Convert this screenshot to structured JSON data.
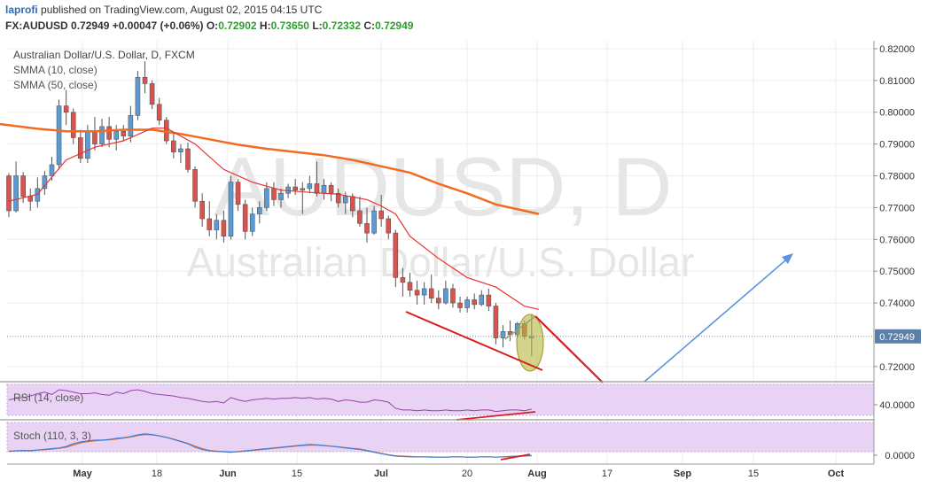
{
  "header": {
    "author": "laprofi",
    "published_text": "published on TradingView.com, August 02, 2015 04:15 UTC",
    "symbol": "FX:AUDUSD",
    "last": "0.72949",
    "change": "+0.00047 (+0.06%)",
    "o_label": "O:",
    "o": "0.72902",
    "h_label": "H:",
    "h": "0.73650",
    "l_label": "L:",
    "l": "0.72332",
    "c_label": "C:",
    "c": "0.72949"
  },
  "legend": {
    "title": "Australian Dollar/U.S. Dollar, D, FXCM",
    "smma10": "SMMA (10, close)",
    "smma50": "SMMA (50, close)",
    "rsi": "RSI (14, close)",
    "stoch": "Stoch (110, 3, 3)"
  },
  "watermark": {
    "symbol": "AUDUSD, D",
    "name": "Australian Dollar/U.S. Dollar"
  },
  "colors": {
    "up": "#5b9bd5",
    "down": "#d9534f",
    "smma10": "#e8322e",
    "smma50": "#f26b21",
    "rsi": "#9b3fa8",
    "stoch_k": "#3b7fd9",
    "stoch_d": "#f26b21",
    "band": "#e8d3f5",
    "trend_red": "#d42020",
    "arrow_blue": "#5b95e0",
    "ellipse": "#b5b540",
    "price_tag": "#5b7fa6"
  },
  "chart_data": {
    "type": "candlestick",
    "x_axis": {
      "ticks": [
        "May",
        "18",
        "Jun",
        "15",
        "Jul",
        "20",
        "Aug",
        "17",
        "Sep",
        "15",
        "Oct"
      ]
    },
    "y_axis": {
      "ylim": [
        0.7155,
        0.8225
      ],
      "ticks": [
        "0.82000",
        "0.81000",
        "0.80000",
        "0.79000",
        "0.78000",
        "0.77000",
        "0.76000",
        "0.75000",
        "0.74000",
        "0.72000"
      ],
      "last_price": "0.72949"
    },
    "candles": [
      {
        "o": 0.78,
        "h": 0.7808,
        "l": 0.767,
        "c": 0.769
      },
      {
        "o": 0.769,
        "h": 0.7845,
        "l": 0.7685,
        "c": 0.78
      },
      {
        "o": 0.78,
        "h": 0.7812,
        "l": 0.7715,
        "c": 0.7735
      },
      {
        "o": 0.7735,
        "h": 0.776,
        "l": 0.769,
        "c": 0.772
      },
      {
        "o": 0.772,
        "h": 0.7795,
        "l": 0.77,
        "c": 0.776
      },
      {
        "o": 0.776,
        "h": 0.7815,
        "l": 0.774,
        "c": 0.78
      },
      {
        "o": 0.78,
        "h": 0.786,
        "l": 0.7785,
        "c": 0.7835
      },
      {
        "o": 0.7835,
        "h": 0.804,
        "l": 0.782,
        "c": 0.802
      },
      {
        "o": 0.802,
        "h": 0.807,
        "l": 0.796,
        "c": 0.8
      },
      {
        "o": 0.8,
        "h": 0.8012,
        "l": 0.79,
        "c": 0.792
      },
      {
        "o": 0.792,
        "h": 0.7945,
        "l": 0.784,
        "c": 0.7855
      },
      {
        "o": 0.7855,
        "h": 0.796,
        "l": 0.784,
        "c": 0.794
      },
      {
        "o": 0.794,
        "h": 0.7985,
        "l": 0.788,
        "c": 0.79
      },
      {
        "o": 0.79,
        "h": 0.798,
        "l": 0.789,
        "c": 0.7955
      },
      {
        "o": 0.7955,
        "h": 0.7985,
        "l": 0.789,
        "c": 0.7915
      },
      {
        "o": 0.7915,
        "h": 0.796,
        "l": 0.788,
        "c": 0.794
      },
      {
        "o": 0.794,
        "h": 0.796,
        "l": 0.791,
        "c": 0.7925
      },
      {
        "o": 0.7925,
        "h": 0.802,
        "l": 0.7905,
        "c": 0.799
      },
      {
        "o": 0.799,
        "h": 0.813,
        "l": 0.7975,
        "c": 0.811
      },
      {
        "o": 0.811,
        "h": 0.816,
        "l": 0.806,
        "c": 0.809
      },
      {
        "o": 0.809,
        "h": 0.81,
        "l": 0.801,
        "c": 0.8025
      },
      {
        "o": 0.8025,
        "h": 0.8045,
        "l": 0.796,
        "c": 0.7975
      },
      {
        "o": 0.7975,
        "h": 0.7985,
        "l": 0.79,
        "c": 0.791
      },
      {
        "o": 0.791,
        "h": 0.7935,
        "l": 0.7855,
        "c": 0.7875
      },
      {
        "o": 0.7875,
        "h": 0.79,
        "l": 0.784,
        "c": 0.7885
      },
      {
        "o": 0.7885,
        "h": 0.7905,
        "l": 0.781,
        "c": 0.782
      },
      {
        "o": 0.782,
        "h": 0.783,
        "l": 0.77,
        "c": 0.772
      },
      {
        "o": 0.772,
        "h": 0.7745,
        "l": 0.764,
        "c": 0.7665
      },
      {
        "o": 0.7665,
        "h": 0.772,
        "l": 0.761,
        "c": 0.763
      },
      {
        "o": 0.763,
        "h": 0.768,
        "l": 0.76,
        "c": 0.766
      },
      {
        "o": 0.766,
        "h": 0.769,
        "l": 0.759,
        "c": 0.761
      },
      {
        "o": 0.761,
        "h": 0.78,
        "l": 0.76,
        "c": 0.778
      },
      {
        "o": 0.778,
        "h": 0.779,
        "l": 0.769,
        "c": 0.771
      },
      {
        "o": 0.771,
        "h": 0.7725,
        "l": 0.76,
        "c": 0.7625
      },
      {
        "o": 0.7625,
        "h": 0.77,
        "l": 0.761,
        "c": 0.768
      },
      {
        "o": 0.768,
        "h": 0.772,
        "l": 0.765,
        "c": 0.77
      },
      {
        "o": 0.77,
        "h": 0.778,
        "l": 0.769,
        "c": 0.776
      },
      {
        "o": 0.776,
        "h": 0.778,
        "l": 0.7705,
        "c": 0.7725
      },
      {
        "o": 0.7725,
        "h": 0.776,
        "l": 0.77,
        "c": 0.7745
      },
      {
        "o": 0.7745,
        "h": 0.7775,
        "l": 0.773,
        "c": 0.7765
      },
      {
        "o": 0.7765,
        "h": 0.779,
        "l": 0.774,
        "c": 0.7755
      },
      {
        "o": 0.7755,
        "h": 0.778,
        "l": 0.768,
        "c": 0.776
      },
      {
        "o": 0.776,
        "h": 0.78,
        "l": 0.7745,
        "c": 0.7775
      },
      {
        "o": 0.7775,
        "h": 0.7845,
        "l": 0.7735,
        "c": 0.7745
      },
      {
        "o": 0.7745,
        "h": 0.779,
        "l": 0.7725,
        "c": 0.777
      },
      {
        "o": 0.777,
        "h": 0.778,
        "l": 0.772,
        "c": 0.7745
      },
      {
        "o": 0.7745,
        "h": 0.776,
        "l": 0.77,
        "c": 0.7715
      },
      {
        "o": 0.7715,
        "h": 0.775,
        "l": 0.768,
        "c": 0.7735
      },
      {
        "o": 0.7735,
        "h": 0.7745,
        "l": 0.767,
        "c": 0.769
      },
      {
        "o": 0.769,
        "h": 0.7735,
        "l": 0.764,
        "c": 0.765
      },
      {
        "o": 0.765,
        "h": 0.77,
        "l": 0.759,
        "c": 0.762
      },
      {
        "o": 0.762,
        "h": 0.7705,
        "l": 0.7615,
        "c": 0.769
      },
      {
        "o": 0.769,
        "h": 0.774,
        "l": 0.764,
        "c": 0.7665
      },
      {
        "o": 0.7665,
        "h": 0.7675,
        "l": 0.76,
        "c": 0.762
      },
      {
        "o": 0.762,
        "h": 0.763,
        "l": 0.745,
        "c": 0.748
      },
      {
        "o": 0.748,
        "h": 0.751,
        "l": 0.742,
        "c": 0.7465
      },
      {
        "o": 0.7465,
        "h": 0.7495,
        "l": 0.742,
        "c": 0.744
      },
      {
        "o": 0.744,
        "h": 0.747,
        "l": 0.7395,
        "c": 0.7425
      },
      {
        "o": 0.7425,
        "h": 0.7465,
        "l": 0.7395,
        "c": 0.7445
      },
      {
        "o": 0.7445,
        "h": 0.749,
        "l": 0.74,
        "c": 0.7415
      },
      {
        "o": 0.7415,
        "h": 0.744,
        "l": 0.738,
        "c": 0.74
      },
      {
        "o": 0.74,
        "h": 0.747,
        "l": 0.7395,
        "c": 0.7445
      },
      {
        "o": 0.7445,
        "h": 0.746,
        "l": 0.7385,
        "c": 0.74
      },
      {
        "o": 0.74,
        "h": 0.742,
        "l": 0.737,
        "c": 0.7385
      },
      {
        "o": 0.7385,
        "h": 0.742,
        "l": 0.737,
        "c": 0.741
      },
      {
        "o": 0.741,
        "h": 0.743,
        "l": 0.738,
        "c": 0.7395
      },
      {
        "o": 0.7395,
        "h": 0.744,
        "l": 0.739,
        "c": 0.7425
      },
      {
        "o": 0.7425,
        "h": 0.7445,
        "l": 0.7375,
        "c": 0.739
      },
      {
        "o": 0.739,
        "h": 0.74,
        "l": 0.727,
        "c": 0.729
      },
      {
        "o": 0.729,
        "h": 0.733,
        "l": 0.726,
        "c": 0.731
      },
      {
        "o": 0.731,
        "h": 0.7345,
        "l": 0.728,
        "c": 0.73
      },
      {
        "o": 0.73,
        "h": 0.734,
        "l": 0.729,
        "c": 0.7335
      },
      {
        "o": 0.7335,
        "h": 0.7345,
        "l": 0.7285,
        "c": 0.7295
      },
      {
        "o": 0.729,
        "h": 0.7365,
        "l": 0.7233,
        "c": 0.7295
      }
    ],
    "smma10": [
      [
        0,
        0.772
      ],
      [
        4,
        0.7742
      ],
      [
        8,
        0.785
      ],
      [
        12,
        0.789
      ],
      [
        16,
        0.791
      ],
      [
        20,
        0.795
      ],
      [
        22,
        0.795
      ],
      [
        26,
        0.79
      ],
      [
        30,
        0.782
      ],
      [
        34,
        0.778
      ],
      [
        38,
        0.7755
      ],
      [
        42,
        0.7748
      ],
      [
        46,
        0.7742
      ],
      [
        50,
        0.7725
      ],
      [
        52,
        0.7705
      ],
      [
        54,
        0.768
      ],
      [
        56,
        0.761
      ],
      [
        60,
        0.754
      ],
      [
        64,
        0.748
      ],
      [
        68,
        0.745
      ],
      [
        72,
        0.739
      ],
      [
        74,
        0.738
      ]
    ],
    "smma50": [
      [
        -2,
        0.7965
      ],
      [
        4,
        0.7948
      ],
      [
        8,
        0.794
      ],
      [
        12,
        0.794
      ],
      [
        16,
        0.7945
      ],
      [
        20,
        0.7945
      ],
      [
        24,
        0.7932
      ],
      [
        28,
        0.7915
      ],
      [
        32,
        0.7898
      ],
      [
        36,
        0.7885
      ],
      [
        40,
        0.7875
      ],
      [
        44,
        0.7865
      ],
      [
        48,
        0.785
      ],
      [
        52,
        0.783
      ],
      [
        56,
        0.781
      ],
      [
        60,
        0.7775
      ],
      [
        64,
        0.7745
      ],
      [
        68,
        0.771
      ],
      [
        72,
        0.769
      ],
      [
        74,
        0.768
      ]
    ],
    "rsi": {
      "label": "RSI (14, close)",
      "tick": "40.0000",
      "values": [
        50,
        52,
        53,
        55,
        58,
        60,
        57,
        63,
        62,
        60,
        58,
        58,
        59,
        57,
        56,
        60,
        58,
        62,
        63,
        61,
        58,
        57,
        56,
        55,
        53,
        52,
        50,
        48,
        47,
        48,
        46,
        53,
        50,
        48,
        50,
        51,
        52,
        51,
        52,
        52,
        53,
        52,
        53,
        51,
        52,
        51,
        48,
        50,
        49,
        47,
        47,
        50,
        49,
        47,
        39,
        37,
        37,
        36,
        37,
        36,
        36,
        37,
        36,
        36,
        37,
        36,
        37,
        37,
        35,
        36,
        37,
        37,
        36,
        38
      ]
    },
    "stoch": {
      "label": "Stoch (110, 3, 3)",
      "tick": "0.0000",
      "k": [
        18,
        20,
        21,
        20,
        22,
        24,
        26,
        28,
        32,
        40,
        45,
        48,
        50,
        50,
        52,
        55,
        57,
        60,
        65,
        68,
        66,
        62,
        58,
        52,
        46,
        40,
        30,
        24,
        20,
        18,
        17,
        16,
        18,
        20,
        22,
        24,
        26,
        28,
        30,
        32,
        34,
        36,
        38,
        37,
        35,
        33,
        31,
        28,
        26,
        24,
        20,
        16,
        12,
        8,
        5,
        4,
        3,
        3,
        3,
        2,
        2,
        2,
        3,
        3,
        2,
        2,
        3,
        3,
        2,
        3,
        4,
        5,
        6,
        7
      ],
      "d": [
        19,
        20,
        20,
        21,
        22,
        23,
        25,
        27,
        30,
        36,
        42,
        46,
        48,
        50,
        51,
        53,
        56,
        59,
        63,
        66,
        65,
        62,
        58,
        53,
        47,
        41,
        33,
        26,
        21,
        19,
        18,
        17,
        17,
        19,
        21,
        23,
        25,
        27,
        29,
        31,
        33,
        35,
        36,
        36,
        35,
        33,
        31,
        29,
        27,
        25,
        21,
        17,
        13,
        9,
        6,
        5,
        4,
        3,
        3,
        3,
        2,
        2,
        3,
        3,
        2,
        2,
        3,
        3,
        2,
        3,
        3,
        4,
        5,
        6
      ]
    }
  }
}
